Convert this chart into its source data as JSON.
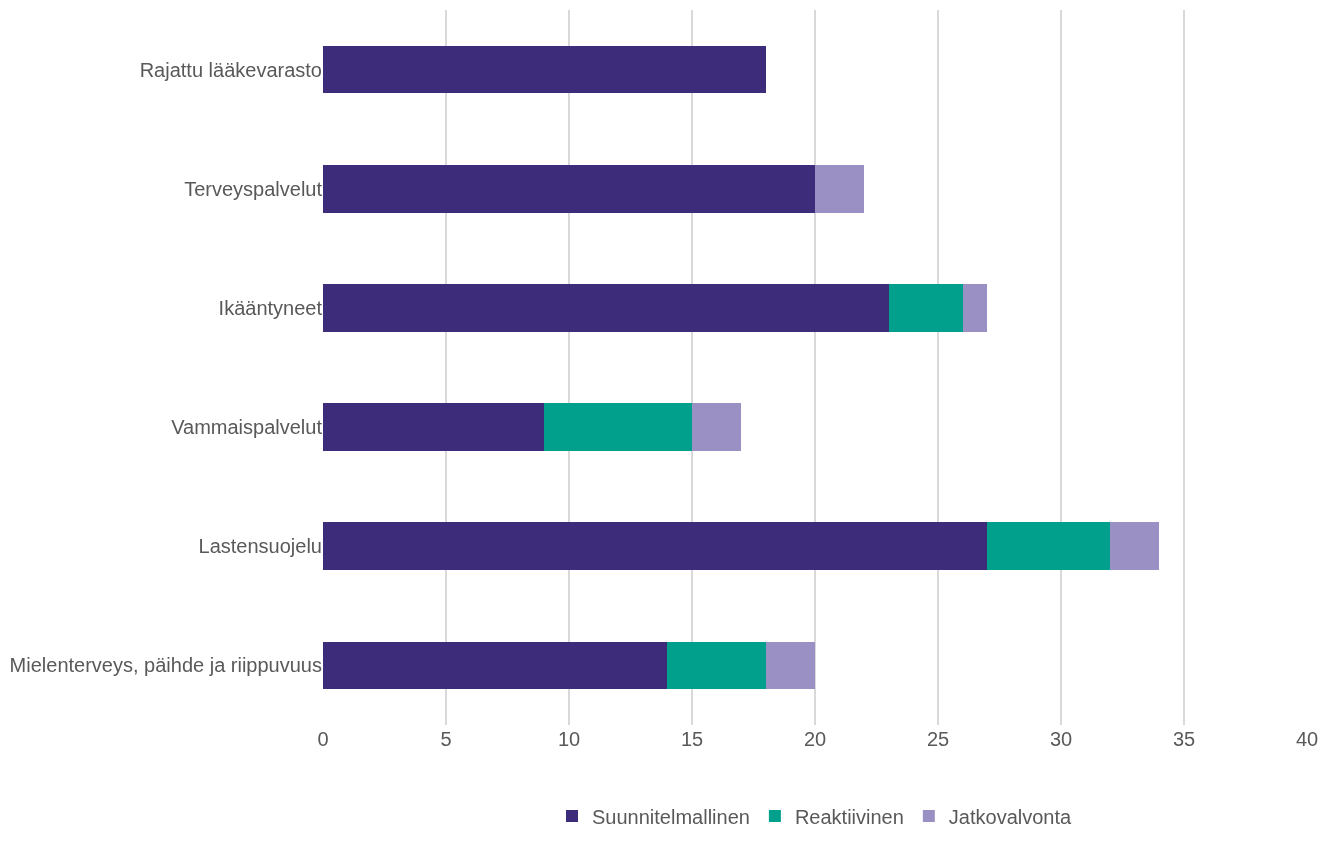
{
  "chart_data": {
    "type": "bar",
    "orientation": "horizontal",
    "stacked": true,
    "categories": [
      "Rajattu lääkevarasto",
      "Terveyspalvelut",
      "Ikääntyneet",
      "Vammaispalvelut",
      "Lastensuojelu",
      "Mielenterveys, päihde ja riippuvuus"
    ],
    "series": [
      {
        "name": "Suunnitelmallinen",
        "color": "#3d2c7a",
        "values": [
          18,
          20,
          23,
          9,
          27,
          14
        ]
      },
      {
        "name": "Reaktiivinen",
        "color": "#00a08c",
        "values": [
          null,
          null,
          3,
          6,
          5,
          4
        ]
      },
      {
        "name": "Jatkovalvonta",
        "color": "#9b90c3",
        "values": [
          null,
          2,
          1,
          2,
          2,
          2
        ]
      }
    ],
    "xlim": [
      0,
      40
    ],
    "xticks": [
      0,
      5,
      10,
      15,
      20,
      25,
      30,
      35,
      40
    ],
    "grid": "x",
    "legend": "bottom"
  }
}
